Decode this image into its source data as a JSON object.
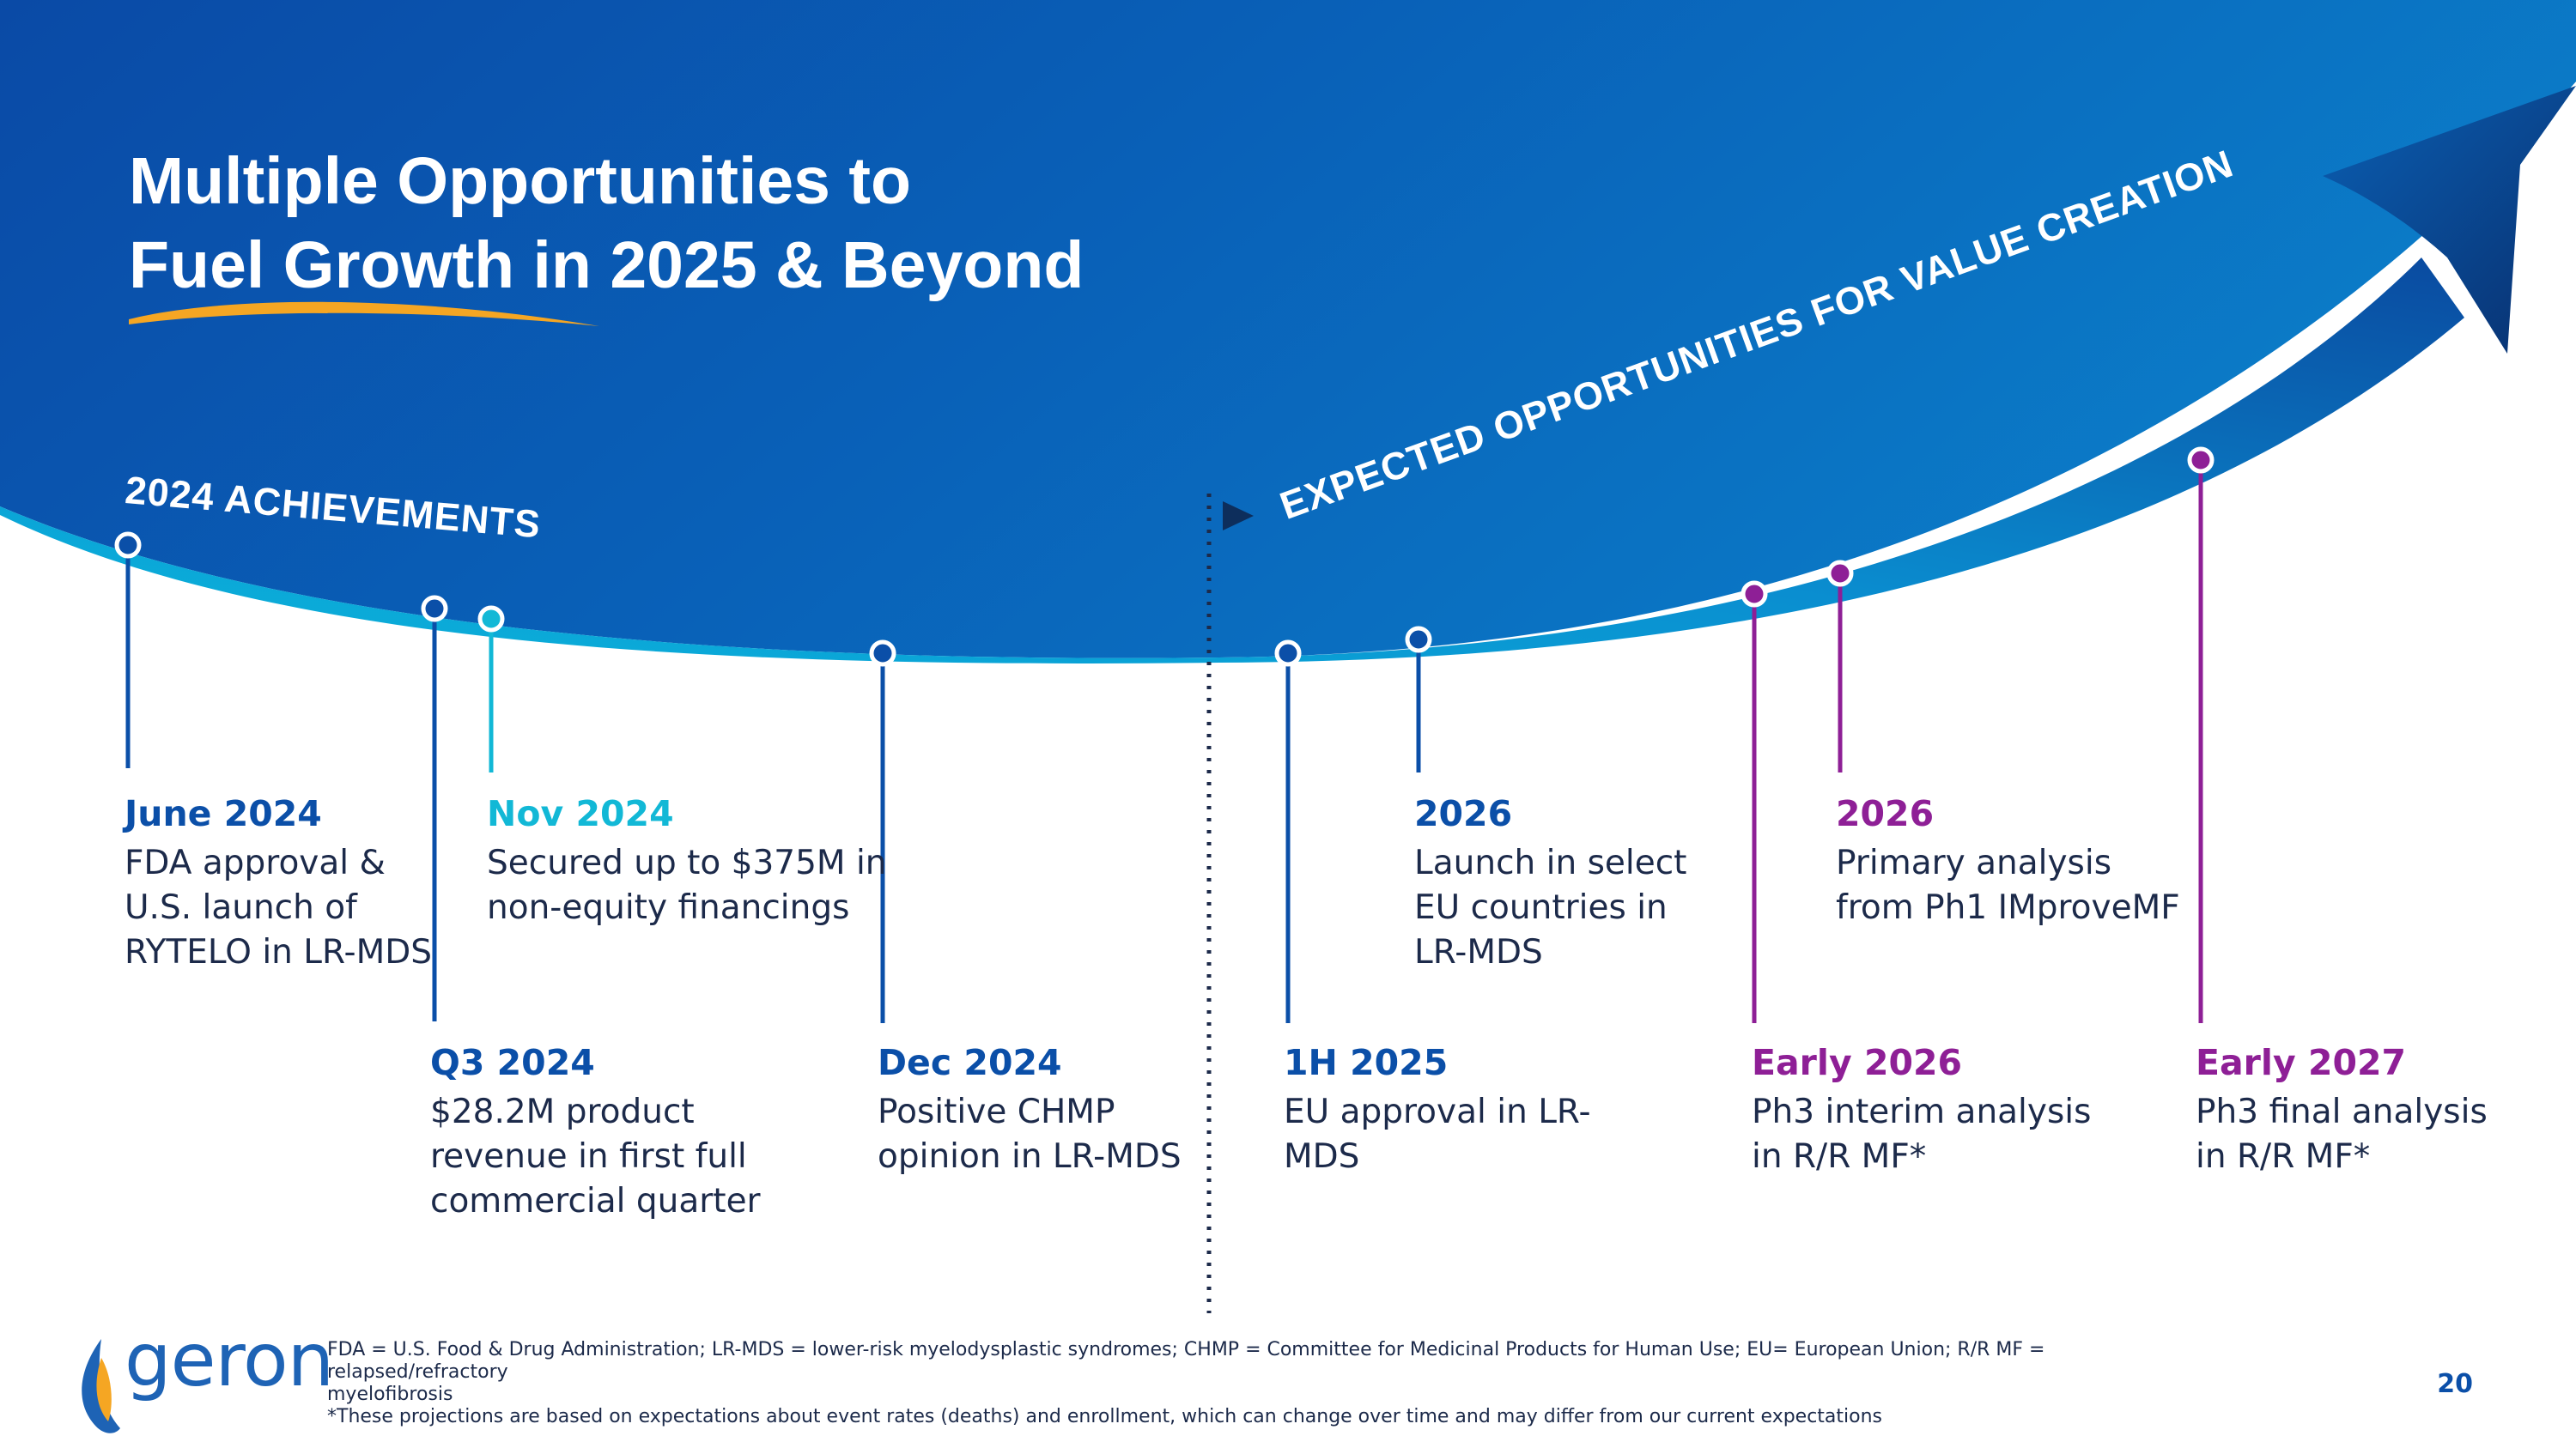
{
  "title": {
    "line1": "Multiple Opportunities to",
    "line2": "Fuel Growth in 2025 & Beyond"
  },
  "sections": {
    "achievements": "2024 ACHIEVEMENTS",
    "expected": "EXPECTED OPPORTUNITIES FOR VALUE CREATION"
  },
  "colors": {
    "blue": "#0b4fa8",
    "cyan": "#12b8d6",
    "purple": "#8e1f96",
    "orange": "#f5a623"
  },
  "events": [
    {
      "date": "June 2024",
      "lines": [
        "FDA approval &",
        "U.S. launch of",
        "RYTELO in LR-MDS"
      ]
    },
    {
      "date": "Nov 2024",
      "lines": [
        "Secured up to $375M in",
        "non-equity financings"
      ]
    },
    {
      "date": "Q3 2024",
      "lines": [
        "$28.2M product",
        "revenue in first full",
        "commercial quarter"
      ]
    },
    {
      "date": "Dec 2024",
      "lines": [
        "Positive CHMP",
        "opinion in LR-MDS"
      ]
    },
    {
      "date": "1H 2025",
      "lines": [
        "EU approval in LR-",
        "MDS"
      ]
    },
    {
      "date": "2026",
      "lines": [
        "Launch in select",
        "EU countries in",
        "LR-MDS"
      ]
    },
    {
      "date": "Early 2026",
      "lines": [
        "Ph3 interim analysis",
        "in R/R MF*"
      ]
    },
    {
      "date": "2026",
      "lines": [
        "Primary analysis",
        "from Ph1 IMproveMF"
      ]
    },
    {
      "date": "Early 2027",
      "lines": [
        "Ph3 final analysis",
        "in R/R MF*"
      ]
    }
  ],
  "footnote": {
    "line1": "FDA = U.S. Food & Drug Administration; LR-MDS = lower-risk myelodysplastic syndromes; CHMP = Committee for Medicinal Products for Human Use; EU= European Union; R/R MF = relapsed/refractory",
    "line2": "myelofibrosis",
    "line3": "*These projections are based on expectations about event rates (deaths) and enrollment, which can change over time and may differ from our current expectations"
  },
  "logo": {
    "name": "geron",
    "icon": "flame-icon"
  },
  "page_number": "20"
}
